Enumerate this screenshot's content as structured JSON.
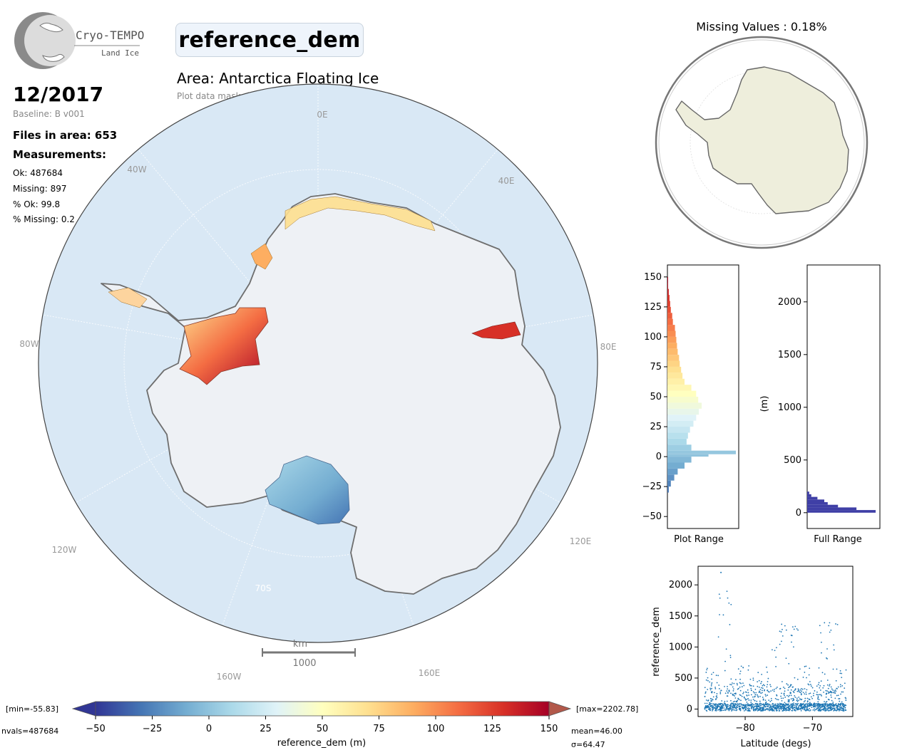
{
  "logo": {
    "line1": "Cryo-TEMPO",
    "line2": "Land Ice"
  },
  "header": {
    "title": "reference_dem",
    "area": "Area: Antarctica Floating Ice",
    "mask": "Plot data mask: floating ice"
  },
  "info": {
    "date": "12/2017",
    "baseline": "Baseline: B v001",
    "files": "Files in area: 653",
    "measurements_heading": "Measurements:",
    "ok": "Ok: 487684",
    "missing": "Missing: 897",
    "pct_ok": "% Ok: 99.8",
    "pct_missing": "% Missing: 0.2"
  },
  "main_map": {
    "meridian_labels": [
      "0E",
      "40E",
      "80E",
      "120E",
      "160E",
      "160W",
      "120W",
      "80W",
      "40W"
    ],
    "parallel_label": "70S",
    "scalebar": {
      "unit": "km",
      "value": "1000"
    },
    "colors": {
      "ocean": "#d9e8f5",
      "ice": "#eef1f5",
      "coast": "#6e6e6e"
    }
  },
  "inset_map": {
    "title": "Missing Values : 0.18%",
    "land_color": "#eeeedc"
  },
  "colorbar": {
    "min_label": "[min=-55.83]",
    "max_label": "[max=2202.78]",
    "nvals": "nvals=487684",
    "mean": "mean=46.00",
    "sigma": "σ=64.47",
    "label": "reference_dem (m)",
    "ticks": [
      "−50",
      "−25",
      "0",
      "25",
      "50",
      "75",
      "100",
      "125",
      "150"
    ],
    "colors": [
      "#313695",
      "#4575b4",
      "#74add1",
      "#abd9e9",
      "#e0f3f8",
      "#ffffbf",
      "#fee090",
      "#fdae61",
      "#f46d43",
      "#d73027",
      "#a50026"
    ]
  },
  "chart_data": [
    {
      "type": "bar",
      "orientation": "horizontal",
      "xlabel": "Plot Range",
      "ylabel": "",
      "ylim": [
        -60,
        160
      ],
      "yticks": [
        "150",
        "125",
        "100",
        "75",
        "50",
        "25",
        "0",
        "−25",
        "−50"
      ],
      "bins": [
        -30,
        -25,
        -20,
        -15,
        -10,
        -5,
        0,
        2,
        5,
        10,
        15,
        20,
        25,
        30,
        35,
        40,
        45,
        50,
        55,
        60,
        65,
        70,
        75,
        80,
        85,
        90,
        95,
        100,
        105,
        110,
        115,
        120,
        125,
        130,
        135,
        140,
        145
      ],
      "counts": [
        0.02,
        0.05,
        0.1,
        0.15,
        0.25,
        0.35,
        0.6,
        1.0,
        0.35,
        0.28,
        0.3,
        0.33,
        0.38,
        0.42,
        0.46,
        0.5,
        0.45,
        0.42,
        0.35,
        0.25,
        0.22,
        0.2,
        0.18,
        0.17,
        0.15,
        0.14,
        0.13,
        0.12,
        0.11,
        0.08,
        0.07,
        0.05,
        0.04,
        0.03,
        0.02,
        0.01,
        0.01
      ]
    },
    {
      "type": "bar",
      "orientation": "horizontal",
      "xlabel": "Full Range",
      "ylabel": "(m)",
      "ylim": [
        -150,
        2350
      ],
      "yticks": [
        "2000",
        "1500",
        "1000",
        "500",
        "0"
      ],
      "bins": [
        0,
        25,
        50,
        75,
        100,
        125,
        150,
        175
      ],
      "counts": [
        1.0,
        0.72,
        0.45,
        0.3,
        0.25,
        0.15,
        0.06,
        0.03
      ]
    },
    {
      "type": "scatter",
      "xlabel": "Latitude (degs)",
      "ylabel": "reference_dem",
      "xlim": [
        -87,
        -64
      ],
      "ylim": [
        -120,
        2300
      ],
      "xticks": [
        "−80",
        "−70"
      ],
      "yticks": [
        "2000",
        "1500",
        "1000",
        "500",
        "0"
      ],
      "color": "#1f77b4"
    }
  ]
}
